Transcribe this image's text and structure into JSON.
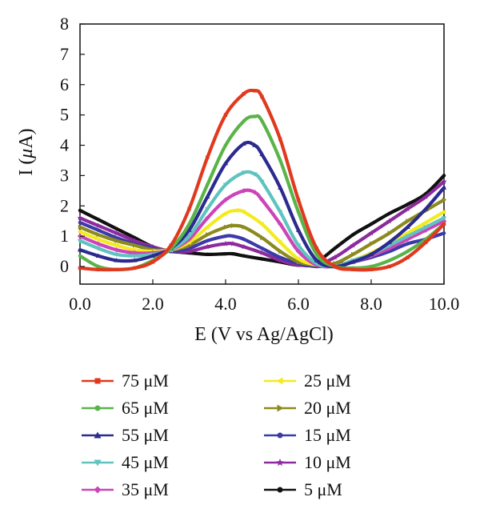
{
  "chart_data": {
    "type": "line",
    "xlabel": "E (V vs Ag/AgCl)",
    "ylabel_prefix": "I (",
    "ylabel_mu": "μ",
    "ylabel_suffix": "A)",
    "xlim": [
      0,
      10
    ],
    "ylim": [
      0,
      8
    ],
    "x_ticks": [
      "0.0",
      "2.0",
      "4.0",
      "6.0",
      "8.0",
      "10.0"
    ],
    "y_ticks": [
      "0",
      "1",
      "2",
      "3",
      "4",
      "5",
      "6",
      "7",
      "8"
    ],
    "grid": false,
    "legend_position": "bottom",
    "series": [
      {
        "name": "75 μM",
        "color": "#e0391e",
        "marker": "square",
        "x": [
          0,
          0.5,
          1,
          1.5,
          2,
          2.5,
          3,
          3.5,
          4,
          4.5,
          4.8,
          5,
          5.5,
          6,
          6.5,
          7,
          7.5,
          8,
          8.5,
          9,
          9.5,
          10
        ],
        "y": [
          -0.05,
          -0.1,
          -0.1,
          -0.05,
          0.15,
          0.7,
          1.9,
          3.6,
          5.0,
          5.7,
          5.8,
          5.6,
          4.2,
          2.2,
          0.6,
          0.0,
          -0.1,
          -0.1,
          0.0,
          0.3,
          0.8,
          1.4
        ]
      },
      {
        "name": "65 μM",
        "color": "#59b448",
        "marker": "circle",
        "x": [
          0,
          0.5,
          1,
          1.5,
          2,
          2.5,
          3,
          3.5,
          4,
          4.5,
          4.8,
          5,
          5.5,
          6,
          6.5,
          7,
          7.5,
          8,
          8.5,
          9,
          9.5,
          10
        ],
        "y": [
          0.35,
          0.0,
          -0.1,
          -0.05,
          0.2,
          0.6,
          1.4,
          2.7,
          4.0,
          4.8,
          4.95,
          4.8,
          3.5,
          1.8,
          0.4,
          0.0,
          -0.05,
          0.0,
          0.2,
          0.5,
          0.9,
          1.4
        ]
      },
      {
        "name": "55 μM",
        "color": "#2b2a8f",
        "marker": "triangle",
        "x": [
          0,
          0.5,
          1,
          1.5,
          2,
          2.5,
          3,
          3.5,
          4,
          4.5,
          4.8,
          5,
          5.5,
          6,
          6.5,
          7,
          7.5,
          8,
          8.5,
          9,
          9.5,
          10
        ],
        "y": [
          0.55,
          0.35,
          0.2,
          0.2,
          0.35,
          0.6,
          1.2,
          2.3,
          3.4,
          4.05,
          4.0,
          3.7,
          2.6,
          1.2,
          0.2,
          0.0,
          0.15,
          0.4,
          0.8,
          1.3,
          1.9,
          2.6
        ]
      },
      {
        "name": "45 μM",
        "color": "#5fc3c0",
        "marker": "triangle-down",
        "x": [
          0,
          0.5,
          1,
          1.5,
          2,
          2.5,
          3,
          3.5,
          4,
          4.5,
          4.8,
          5,
          5.5,
          6,
          6.5,
          7,
          7.5,
          8,
          8.5,
          9,
          9.5,
          10
        ],
        "y": [
          0.85,
          0.6,
          0.4,
          0.35,
          0.4,
          0.55,
          1.0,
          1.9,
          2.7,
          3.1,
          3.05,
          2.8,
          1.8,
          0.7,
          0.1,
          0.0,
          0.2,
          0.4,
          0.7,
          1.0,
          1.3,
          1.6
        ]
      },
      {
        "name": "35 μM",
        "color": "#cc44b8",
        "marker": "diamond",
        "x": [
          0,
          0.5,
          1,
          1.5,
          2,
          2.5,
          3,
          3.5,
          4,
          4.5,
          4.8,
          5,
          5.5,
          6,
          6.5,
          7,
          7.5,
          8,
          8.5,
          9,
          9.5,
          10
        ],
        "y": [
          1.0,
          0.75,
          0.55,
          0.45,
          0.45,
          0.55,
          0.9,
          1.6,
          2.2,
          2.5,
          2.45,
          2.2,
          1.4,
          0.5,
          0.05,
          0.0,
          0.15,
          0.35,
          0.6,
          0.9,
          1.2,
          1.5
        ]
      },
      {
        "name": "25 μM",
        "color": "#f4ea1e",
        "marker": "triangle-left",
        "x": [
          0,
          0.5,
          1,
          1.5,
          2,
          2.5,
          3,
          3.5,
          4,
          4.3,
          4.5,
          5,
          5.5,
          6,
          6.5,
          7,
          7.5,
          8,
          8.5,
          9,
          9.5,
          10
        ],
        "y": [
          1.15,
          0.9,
          0.7,
          0.55,
          0.5,
          0.55,
          0.8,
          1.3,
          1.75,
          1.85,
          1.8,
          1.4,
          0.8,
          0.25,
          0.05,
          0.0,
          0.2,
          0.45,
          0.75,
          1.1,
          1.45,
          1.8
        ]
      },
      {
        "name": "20 μM",
        "color": "#8c8a1e",
        "marker": "triangle-right",
        "x": [
          0,
          0.5,
          1,
          1.5,
          2,
          2.5,
          3,
          3.5,
          4,
          4.2,
          4.5,
          5,
          5.5,
          6,
          6.5,
          7,
          7.5,
          8,
          8.5,
          9,
          9.5,
          10
        ],
        "y": [
          1.3,
          1.05,
          0.85,
          0.7,
          0.55,
          0.55,
          0.7,
          1.05,
          1.3,
          1.35,
          1.3,
          0.95,
          0.5,
          0.15,
          0.05,
          0.1,
          0.4,
          0.75,
          1.1,
          1.5,
          1.85,
          2.2
        ]
      },
      {
        "name": "15 μM",
        "color": "#3c3aa8",
        "marker": "circle",
        "x": [
          0,
          0.5,
          1,
          1.5,
          2,
          2.5,
          3,
          3.5,
          4,
          4.2,
          4.5,
          5,
          5.5,
          6,
          6.5,
          7,
          7.5,
          8,
          8.5,
          9,
          9.5,
          10
        ],
        "y": [
          1.45,
          1.2,
          0.95,
          0.75,
          0.6,
          0.5,
          0.6,
          0.85,
          1.0,
          1.0,
          0.9,
          0.6,
          0.3,
          0.1,
          0.0,
          0.05,
          0.15,
          0.3,
          0.5,
          0.75,
          0.9,
          1.1
        ]
      },
      {
        "name": "10 μM",
        "color": "#8d2a9e",
        "marker": "star",
        "x": [
          0,
          0.5,
          1,
          1.5,
          2,
          2.5,
          3,
          3.5,
          4,
          4.2,
          4.5,
          5,
          5.5,
          6,
          6.5,
          7,
          7.5,
          8,
          8.5,
          9,
          9.5,
          10
        ],
        "y": [
          1.6,
          1.35,
          1.1,
          0.85,
          0.65,
          0.5,
          0.5,
          0.65,
          0.75,
          0.75,
          0.65,
          0.45,
          0.2,
          0.05,
          0.05,
          0.3,
          0.7,
          1.1,
          1.5,
          1.9,
          2.3,
          2.8
        ]
      },
      {
        "name": "5 μM",
        "color": "#111111",
        "marker": "circle",
        "x": [
          0,
          0.5,
          1,
          1.5,
          2,
          2.5,
          3,
          3.5,
          4,
          4.2,
          4.5,
          5,
          5.5,
          6,
          6.5,
          7,
          7.5,
          8,
          8.5,
          9,
          9.5,
          10
        ],
        "y": [
          1.85,
          1.55,
          1.25,
          0.95,
          0.65,
          0.5,
          0.45,
          0.4,
          0.42,
          0.42,
          0.35,
          0.25,
          0.15,
          0.05,
          0.15,
          0.6,
          1.05,
          1.4,
          1.75,
          2.05,
          2.4,
          3.0
        ]
      }
    ]
  }
}
